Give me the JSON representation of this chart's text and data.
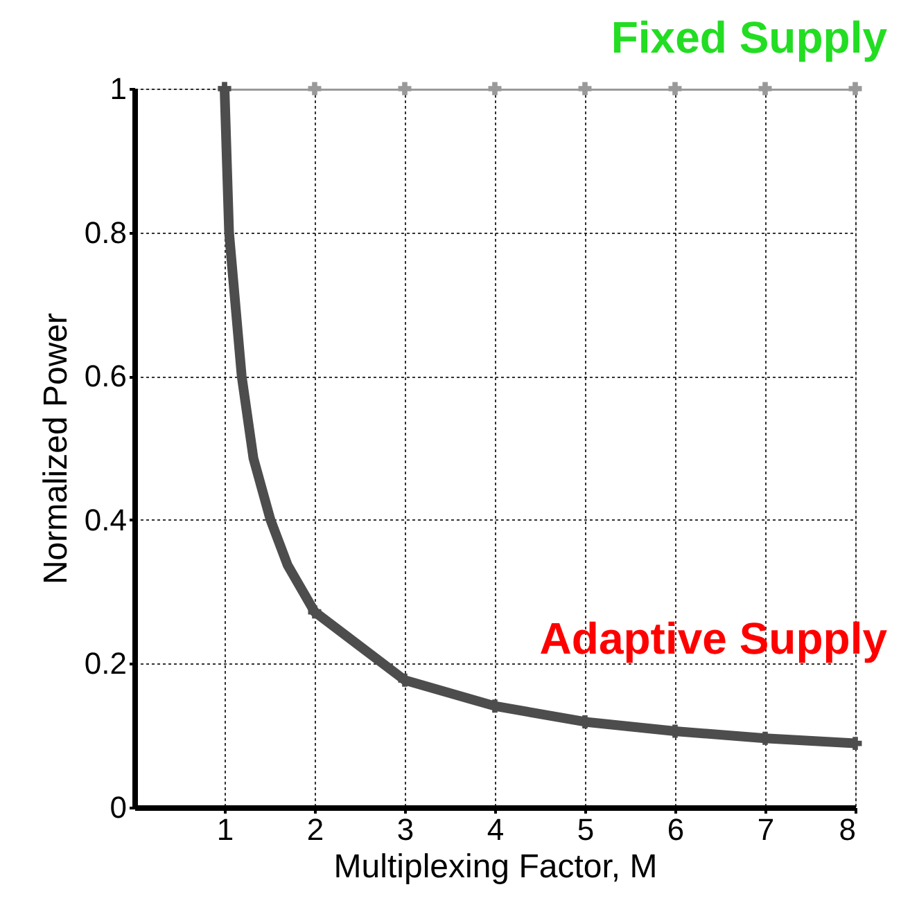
{
  "chart_data": {
    "type": "line",
    "xlabel": "Multiplexing Factor, M",
    "ylabel": "Normalized Power",
    "xlim": [
      0,
      8
    ],
    "xticks": [
      1,
      2,
      3,
      4,
      5,
      6,
      7,
      8
    ],
    "ylim": [
      0,
      1
    ],
    "yticks": [
      0,
      0.2,
      0.4,
      0.6,
      0.8,
      1
    ],
    "grid": true,
    "marker": "cross",
    "line_style": "solid",
    "series": [
      {
        "name": "Fixed Supply",
        "color": "#999999",
        "x": [
          1,
          2,
          3,
          4,
          5,
          6,
          7,
          8
        ],
        "values": [
          1,
          1,
          1,
          1,
          1,
          1,
          1,
          1
        ]
      },
      {
        "name": "Adaptive Supply",
        "color": "#4d4d4d",
        "x": [
          1,
          1.05,
          1.19,
          1.32,
          1.51,
          1.7,
          2,
          3,
          4,
          5,
          6,
          7,
          8
        ],
        "values": [
          1,
          0.8,
          0.6,
          0.486,
          0.4,
          0.337,
          0.272,
          0.177,
          0.141,
          0.119,
          0.106,
          0.096,
          0.089
        ]
      }
    ]
  }
}
